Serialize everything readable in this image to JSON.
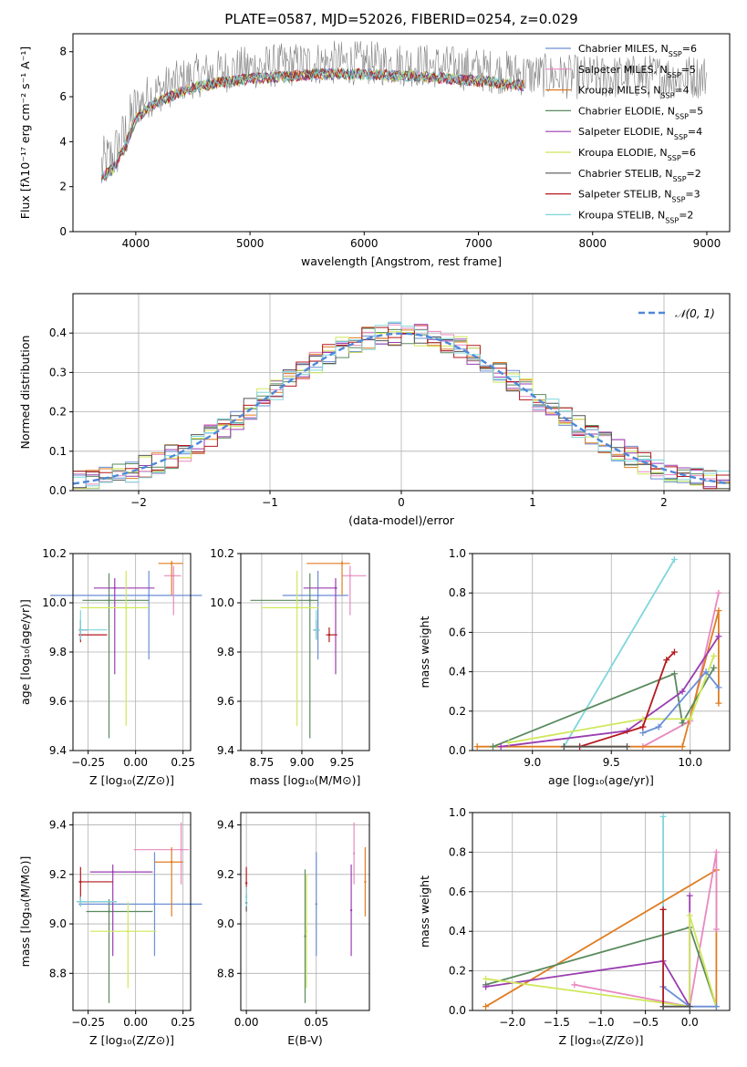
{
  "figure_title": "PLATE=0587, MJD=52026, FIBERID=0254, z=0.029",
  "colors": {
    "Chabrier MILES": "#6b8fd6",
    "Salpeter MILES": "#e889c0",
    "Kroupa MILES": "#e07d22",
    "Chabrier ELODIE": "#5a8a5e",
    "Salpeter ELODIE": "#9a3db0",
    "Kroupa ELODIE": "#cfe85a",
    "Chabrier STELIB": "#555555",
    "Salpeter STELIB": "#b5191f",
    "Kroupa STELIB": "#7fd6dc",
    "data": "#808080",
    "normal": "#4f88d8"
  },
  "chart_data": [
    {
      "type": "line",
      "title": "PLATE=0587, MJD=52026, FIBERID=0254, z=0.029",
      "xlabel": "wavelength [Angstrom, rest frame]",
      "ylabel": "Flux [fλ10⁻¹⁷ erg cm⁻² s⁻¹ A⁻¹]",
      "xlim": [
        3450,
        9200
      ],
      "ylim": [
        0,
        8.8
      ],
      "xticks": [
        4000,
        5000,
        6000,
        7000,
        8000,
        9000
      ],
      "yticks": [
        0,
        2,
        4,
        6,
        8
      ],
      "legend_position": "top-right",
      "legend": [
        {
          "name": "Chabrier MILES",
          "sub": "6"
        },
        {
          "name": "Salpeter MILES",
          "sub": "5"
        },
        {
          "name": "Kroupa MILES",
          "sub": "4"
        },
        {
          "name": "Chabrier ELODIE",
          "sub": "5"
        },
        {
          "name": "Salpeter ELODIE",
          "sub": "4"
        },
        {
          "name": "Kroupa ELODIE",
          "sub": "6"
        },
        {
          "name": "Chabrier STELIB",
          "sub": "2"
        },
        {
          "name": "Salpeter STELIB",
          "sub": "3"
        },
        {
          "name": "Kroupa STELIB",
          "sub": "2"
        }
      ],
      "continuum": {
        "x": [
          3700,
          3800,
          3900,
          4000,
          4100,
          4300,
          4500,
          4700,
          5000,
          5300,
          5600,
          6000,
          6500,
          7000,
          7400,
          7700,
          8000,
          8500,
          9000
        ],
        "y": [
          2.9,
          3.3,
          4.2,
          5.5,
          6.0,
          6.5,
          6.9,
          7.1,
          7.3,
          7.4,
          7.5,
          7.5,
          7.4,
          7.2,
          7.0,
          6.9,
          6.85,
          6.9,
          6.9
        ]
      },
      "models_end_x": 7400
    },
    {
      "type": "bar",
      "xlabel": "(data-model)/error",
      "ylabel": "Normed distribution",
      "xlim": [
        -2.5,
        2.5
      ],
      "ylim": [
        0,
        0.5
      ],
      "xticks": [
        -2,
        -1,
        0,
        1,
        2
      ],
      "yticks": [
        0.0,
        0.1,
        0.2,
        0.3,
        0.4
      ],
      "legend": "𝒩(0, 1)",
      "legend_position": "top-right",
      "bin_width": 0.1
    },
    {
      "type": "scatter",
      "xlabel": "Z [log₁₀(Z/Z⊙)]",
      "ylabel": "age  [log₁₀(age/yr)]",
      "xlim": [
        -0.33,
        0.29
      ],
      "ylim": [
        9.4,
        10.2
      ],
      "xticks": [
        -0.25,
        0.0,
        0.25
      ],
      "yticks": [
        9.4,
        9.6,
        9.8,
        10.0,
        10.2
      ],
      "points": [
        {
          "s": "Chabrier MILES",
          "x": 0.07,
          "y": 10.03,
          "xe": [
            -0.45,
            0.35
          ],
          "ye": [
            9.77,
            10.13
          ]
        },
        {
          "s": "Salpeter MILES",
          "x": 0.2,
          "y": 10.11,
          "xe": [
            0.15,
            0.24
          ],
          "ye": [
            9.95,
            10.15
          ]
        },
        {
          "s": "Kroupa MILES",
          "x": 0.19,
          "y": 10.16,
          "xe": [
            0.12,
            0.25
          ],
          "ye": [
            10.03,
            10.17
          ]
        },
        {
          "s": "Chabrier ELODIE",
          "x": -0.14,
          "y": 10.01,
          "xe": [
            -0.28,
            0.07
          ],
          "ye": [
            9.45,
            10.12
          ]
        },
        {
          "s": "Salpeter ELODIE",
          "x": -0.11,
          "y": 10.06,
          "xe": [
            -0.22,
            0.1
          ],
          "ye": [
            9.71,
            10.1
          ]
        },
        {
          "s": "Kroupa ELODIE",
          "x": -0.05,
          "y": 9.98,
          "xe": [
            -0.29,
            0.07
          ],
          "ye": [
            9.5,
            10.13
          ]
        },
        {
          "s": "Chabrier STELIB",
          "x": -0.29,
          "y": 9.89,
          "xe": [
            -0.3,
            -0.25
          ],
          "ye": [
            9.85,
            9.93
          ]
        },
        {
          "s": "Salpeter STELIB",
          "x": -0.29,
          "y": 9.87,
          "xe": [
            -0.3,
            -0.15
          ],
          "ye": [
            9.84,
            9.9
          ]
        },
        {
          "s": "Kroupa STELIB",
          "x": -0.29,
          "y": 9.89,
          "xe": [
            -0.3,
            -0.15
          ],
          "ye": [
            9.85,
            9.97
          ]
        }
      ]
    },
    {
      "type": "scatter",
      "xlabel": "mass [log₁₀(M/M⊙)]",
      "ylabel": "",
      "xlim": [
        8.62,
        9.42
      ],
      "ylim": [
        9.4,
        10.2
      ],
      "xticks": [
        8.75,
        9.0,
        9.25
      ],
      "yticks": [
        9.4,
        9.6,
        9.8,
        10.0,
        10.2
      ],
      "points": [
        {
          "s": "Chabrier MILES",
          "x": 9.1,
          "y": 10.03,
          "xe": [
            8.88,
            9.29
          ],
          "ye": [
            9.77,
            10.13
          ]
        },
        {
          "s": "Salpeter MILES",
          "x": 9.3,
          "y": 10.11,
          "xe": [
            9.25,
            9.4
          ],
          "ye": [
            9.95,
            10.15
          ]
        },
        {
          "s": "Kroupa MILES",
          "x": 9.25,
          "y": 10.16,
          "xe": [
            9.03,
            9.3
          ],
          "ye": [
            10.03,
            10.17
          ]
        },
        {
          "s": "Chabrier ELODIE",
          "x": 9.05,
          "y": 10.01,
          "xe": [
            8.68,
            9.1
          ],
          "ye": [
            9.45,
            10.12
          ]
        },
        {
          "s": "Salpeter ELODIE",
          "x": 9.21,
          "y": 10.06,
          "xe": [
            9.01,
            9.22
          ],
          "ye": [
            9.71,
            10.1
          ]
        },
        {
          "s": "Kroupa ELODIE",
          "x": 8.97,
          "y": 9.98,
          "xe": [
            8.75,
            9.1
          ],
          "ye": [
            9.5,
            10.13
          ]
        },
        {
          "s": "Chabrier STELIB",
          "x": 9.09,
          "y": 9.89,
          "xe": [
            9.07,
            9.11
          ],
          "ye": [
            9.85,
            9.93
          ]
        },
        {
          "s": "Salpeter STELIB",
          "x": 9.17,
          "y": 9.87,
          "xe": [
            9.15,
            9.22
          ],
          "ye": [
            9.84,
            9.9
          ]
        },
        {
          "s": "Kroupa STELIB",
          "x": 9.09,
          "y": 9.89,
          "xe": [
            9.07,
            9.11
          ],
          "ye": [
            9.85,
            9.97
          ]
        }
      ]
    },
    {
      "type": "line",
      "xlabel": "age  [log₁₀(age/yr)]",
      "ylabel": "mass weight",
      "xlim": [
        8.62,
        10.25
      ],
      "ylim": [
        0,
        1
      ],
      "xticks": [
        9.0,
        9.5,
        10.0
      ],
      "yticks": [
        0.0,
        0.2,
        0.4,
        0.6,
        0.8,
        1.0
      ],
      "series": [
        {
          "s": "Kroupa STELIB",
          "x": [
            9.2,
            9.9
          ],
          "y": [
            0.02,
            0.97
          ]
        },
        {
          "s": "Salpeter MILES",
          "x": [
            9.7,
            10.0,
            10.18
          ],
          "y": [
            0.02,
            0.15,
            0.8
          ]
        },
        {
          "s": "Kroupa MILES",
          "x": [
            8.65,
            9.95,
            10.18,
            10.18
          ],
          "y": [
            0.02,
            0.02,
            0.71,
            0.24
          ]
        },
        {
          "s": "Chabrier ELODIE",
          "x": [
            8.75,
            9.9,
            9.95,
            10.15
          ],
          "y": [
            0.02,
            0.39,
            0.14,
            0.42
          ]
        },
        {
          "s": "Salpeter ELODIE",
          "x": [
            8.8,
            9.6,
            9.95,
            10.18
          ],
          "y": [
            0.02,
            0.1,
            0.3,
            0.58
          ]
        },
        {
          "s": "Kroupa ELODIE",
          "x": [
            8.85,
            9.7,
            10.0,
            10.15
          ],
          "y": [
            0.04,
            0.16,
            0.16,
            0.48
          ]
        },
        {
          "s": "Chabrier MILES",
          "x": [
            9.7,
            9.8,
            10.1,
            10.18
          ],
          "y": [
            0.09,
            0.12,
            0.4,
            0.32
          ]
        },
        {
          "s": "Salpeter STELIB",
          "x": [
            9.3,
            9.7,
            9.85,
            9.9
          ],
          "y": [
            0.02,
            0.12,
            0.46,
            0.5
          ]
        },
        {
          "s": "Chabrier STELIB",
          "x": [
            9.2,
            9.6
          ],
          "y": [
            0.02,
            0.02
          ]
        }
      ]
    },
    {
      "type": "scatter",
      "xlabel": "Z [log₁₀(Z/Z⊙)]",
      "ylabel": "mass [log₁₀(M/M⊙)]",
      "xlim": [
        -0.33,
        0.29
      ],
      "ylim": [
        8.65,
        9.45
      ],
      "xticks": [
        -0.25,
        0.0,
        0.25
      ],
      "yticks": [
        8.8,
        9.0,
        9.2,
        9.4
      ],
      "points": [
        {
          "s": "Chabrier MILES",
          "x": 0.1,
          "y": 9.08,
          "xe": [
            -0.3,
            0.35
          ],
          "ye": [
            8.87,
            9.29
          ]
        },
        {
          "s": "Salpeter MILES",
          "x": 0.24,
          "y": 9.3,
          "xe": [
            -0.01,
            0.28
          ],
          "ye": [
            9.16,
            9.41
          ]
        },
        {
          "s": "Kroupa MILES",
          "x": 0.19,
          "y": 9.25,
          "xe": [
            0.1,
            0.25
          ],
          "ye": [
            9.03,
            9.31
          ]
        },
        {
          "s": "Chabrier ELODIE",
          "x": -0.14,
          "y": 9.05,
          "xe": [
            -0.26,
            0.09
          ],
          "ye": [
            8.68,
            9.1
          ]
        },
        {
          "s": "Salpeter ELODIE",
          "x": -0.12,
          "y": 9.21,
          "xe": [
            -0.24,
            0.09
          ],
          "ye": [
            8.87,
            9.24
          ]
        },
        {
          "s": "Kroupa ELODIE",
          "x": -0.04,
          "y": 8.97,
          "xe": [
            -0.24,
            0.11
          ],
          "ye": [
            8.74,
            9.09
          ]
        },
        {
          "s": "Chabrier STELIB",
          "x": -0.29,
          "y": 9.09,
          "xe": [
            -0.31,
            -0.1
          ],
          "ye": [
            9.07,
            9.11
          ]
        },
        {
          "s": "Salpeter STELIB",
          "x": -0.29,
          "y": 9.17,
          "xe": [
            -0.3,
            -0.12
          ],
          "ye": [
            9.1,
            9.23
          ]
        },
        {
          "s": "Kroupa STELIB",
          "x": -0.29,
          "y": 9.09,
          "xe": [
            -0.31,
            -0.1
          ],
          "ye": [
            9.07,
            9.11
          ]
        }
      ]
    },
    {
      "type": "scatter",
      "xlabel": "E(B-V)",
      "ylabel": "",
      "xlim": [
        -0.004,
        0.088
      ],
      "ylim": [
        8.65,
        9.45
      ],
      "xticks": [
        0.0,
        0.05
      ],
      "yticks": [
        8.8,
        9.0,
        9.2,
        9.4
      ],
      "points": [
        {
          "s": "Chabrier MILES",
          "x": 0.05,
          "ye": [
            8.87,
            9.29
          ]
        },
        {
          "s": "Salpeter MILES",
          "x": 0.077,
          "ye": [
            9.16,
            9.41
          ]
        },
        {
          "s": "Kroupa MILES",
          "x": 0.085,
          "ye": [
            9.03,
            9.31
          ]
        },
        {
          "s": "Chabrier ELODIE",
          "x": 0.042,
          "ye": [
            8.68,
            9.22
          ]
        },
        {
          "s": "Salpeter ELODIE",
          "x": 0.075,
          "ye": [
            8.87,
            9.24
          ]
        },
        {
          "s": "Kroupa ELODIE",
          "x": 0.043,
          "ye": [
            8.74,
            9.2
          ]
        },
        {
          "s": "Chabrier STELIB",
          "x": 0.0,
          "ye": [
            9.05,
            9.12
          ]
        },
        {
          "s": "Salpeter STELIB",
          "x": 0.0,
          "ye": [
            9.1,
            9.23
          ]
        },
        {
          "s": "Kroupa STELIB",
          "x": 0.0,
          "ye": [
            9.07,
            9.15
          ]
        }
      ]
    },
    {
      "type": "line",
      "xlabel": "Z [log₁₀(Z/Z⊙)]",
      "ylabel": "mass weight",
      "xlim": [
        -2.45,
        0.45
      ],
      "ylim": [
        0,
        1
      ],
      "xticks": [
        -2.0,
        -1.5,
        -1.0,
        -0.5,
        0.0
      ],
      "yticks": [
        0.0,
        0.2,
        0.4,
        0.6,
        0.8,
        1.0
      ],
      "series": [
        {
          "s": "Kroupa STELIB",
          "x": [
            -0.3,
            -0.3
          ],
          "y": [
            0.02,
            0.98
          ]
        },
        {
          "s": "Kroupa MILES",
          "x": [
            -2.3,
            0.3,
            0.3
          ],
          "y": [
            0.02,
            0.71,
            0.02
          ]
        },
        {
          "s": "Salpeter MILES",
          "x": [
            -1.3,
            0.0,
            0.3,
            0.3
          ],
          "y": [
            0.13,
            0.02,
            0.8,
            0.41
          ]
        },
        {
          "s": "Chabrier ELODIE",
          "x": [
            -2.3,
            0.0,
            0.3
          ],
          "y": [
            0.13,
            0.42,
            0.02
          ]
        },
        {
          "s": "Salpeter ELODIE",
          "x": [
            -2.3,
            -0.3,
            0.0,
            0.0
          ],
          "y": [
            0.12,
            0.25,
            0.02,
            0.58
          ]
        },
        {
          "s": "Kroupa ELODIE",
          "x": [
            -2.3,
            0.0,
            0.0,
            0.3
          ],
          "y": [
            0.16,
            0.02,
            0.48,
            0.02
          ]
        },
        {
          "s": "Chabrier MILES",
          "x": [
            -0.3,
            0.0,
            0.3
          ],
          "y": [
            0.12,
            0.02,
            0.02
          ]
        },
        {
          "s": "Salpeter STELIB",
          "x": [
            -0.3,
            -0.3
          ],
          "y": [
            0.02,
            0.51
          ]
        },
        {
          "s": "Chabrier STELIB",
          "x": [
            -0.3,
            0.0
          ],
          "y": [
            0.02,
            0.02
          ]
        }
      ]
    }
  ]
}
